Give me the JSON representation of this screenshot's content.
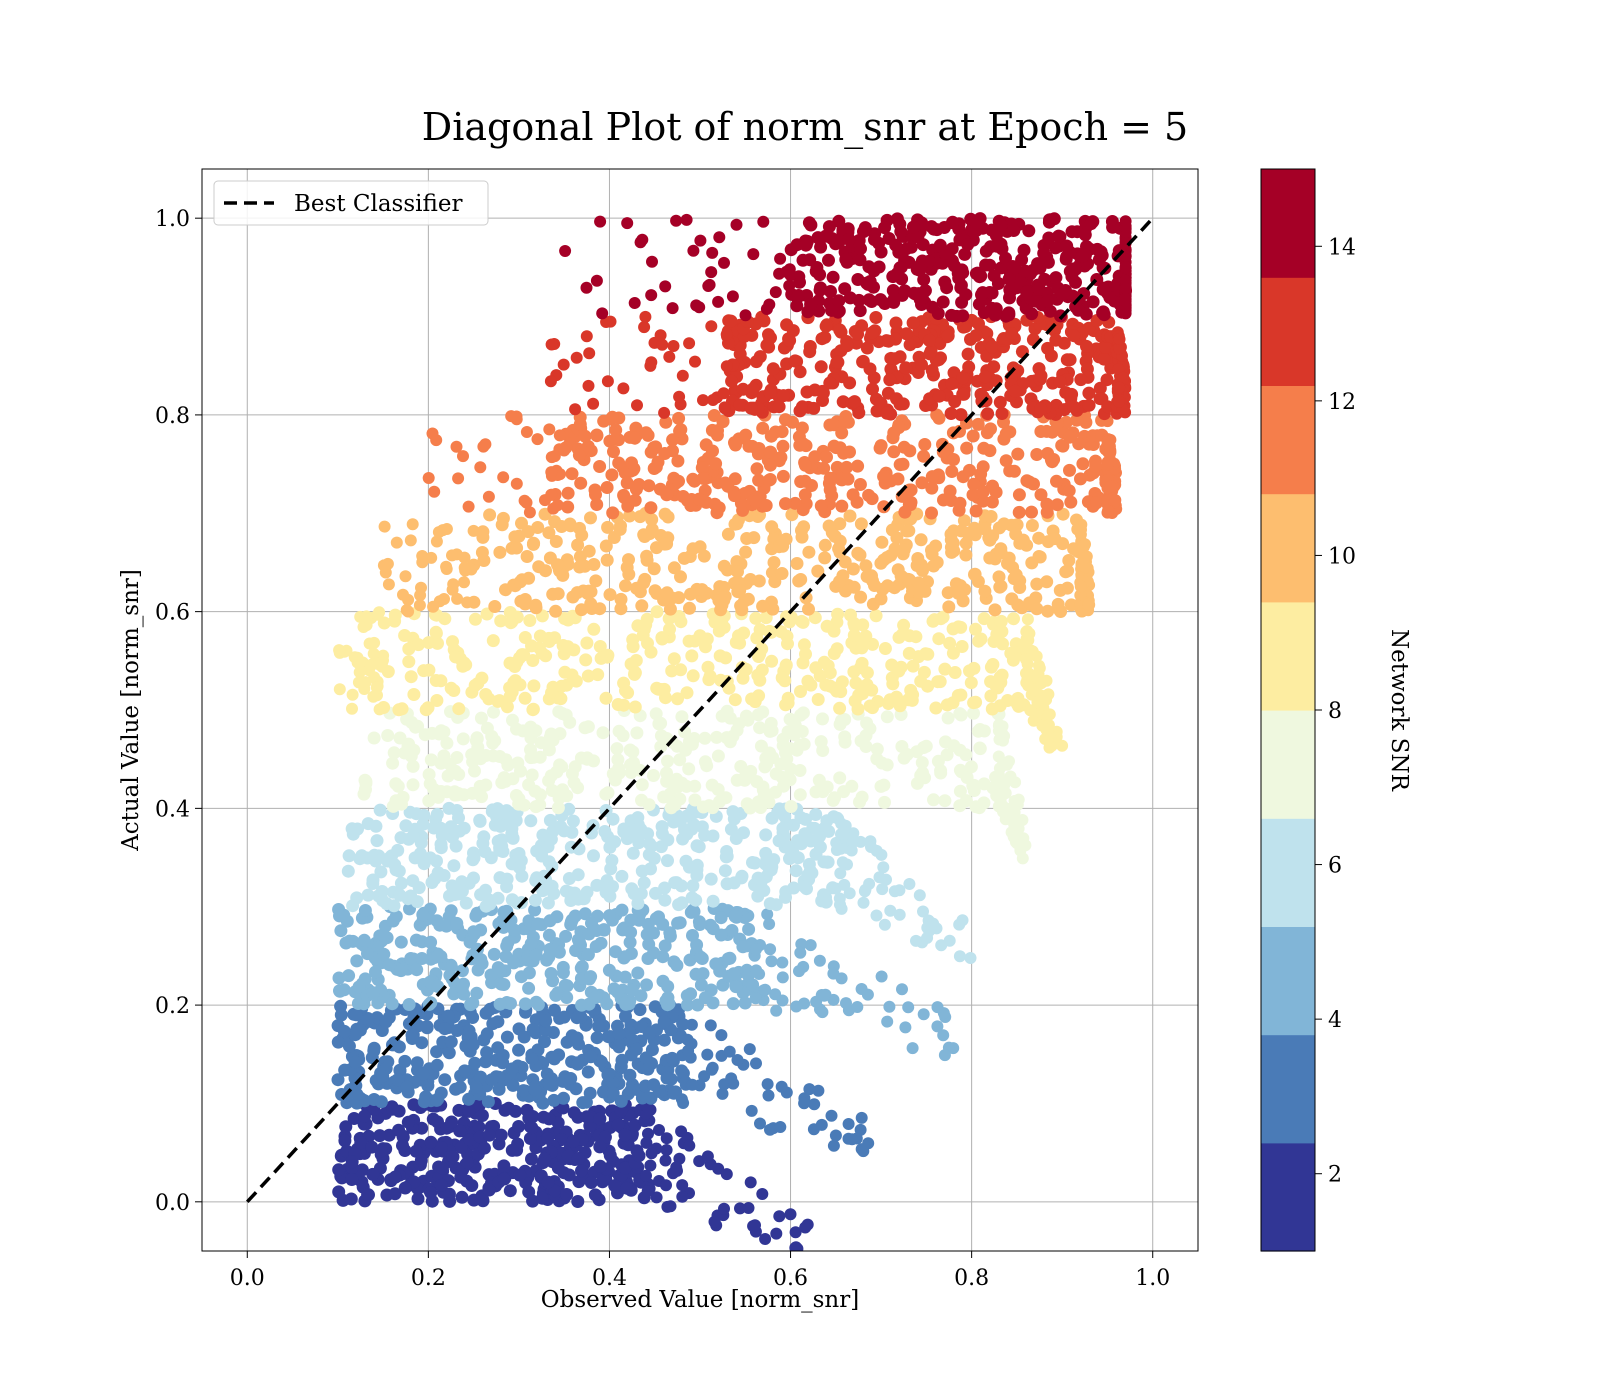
{
  "chart_data": {
    "type": "scatter",
    "title": "Diagonal Plot of norm_snr at Epoch = 5",
    "xlabel": "Observed Value [norm_snr]",
    "ylabel": "Actual Value [norm_snr]",
    "xlim": [
      -0.05,
      1.05
    ],
    "ylim": [
      -0.05,
      1.05
    ],
    "xticks": [
      "0.0",
      "0.2",
      "0.4",
      "0.6",
      "0.8",
      "1.0"
    ],
    "yticks": [
      "0.0",
      "0.2",
      "0.4",
      "0.6",
      "0.8",
      "1.0"
    ],
    "grid": true,
    "legend": {
      "position": "top-left",
      "entries": [
        "Best Classifier"
      ]
    },
    "reference_line": {
      "name": "Best Classifier",
      "style": "dashed",
      "color": "#000000",
      "x": [
        0.0,
        1.0
      ],
      "y": [
        0.0,
        1.0
      ]
    },
    "colorbar": {
      "label": "Network SNR",
      "range": [
        1,
        15
      ],
      "ticks": [
        "2",
        "4",
        "6",
        "8",
        "10",
        "12",
        "14"
      ],
      "colors": [
        "#313695",
        "#4a7bb7",
        "#81b5d7",
        "#bfe2ed",
        "#eff8df",
        "#fdeda1",
        "#fdbe6f",
        "#f57e4b",
        "#d93729",
        "#a50026"
      ]
    },
    "bands": [
      {
        "snr": 1.7,
        "color": "#313695",
        "y_range": [
          0.0,
          0.1
        ],
        "x_core": [
          0.1,
          0.44
        ],
        "x_tail": 0.62
      },
      {
        "snr": 3.1,
        "color": "#4a7bb7",
        "y_range": [
          0.1,
          0.2
        ],
        "x_core": [
          0.1,
          0.48
        ],
        "x_tail": 0.69
      },
      {
        "snr": 4.5,
        "color": "#81b5d7",
        "y_range": [
          0.2,
          0.3
        ],
        "x_core": [
          0.1,
          0.56
        ],
        "x_tail": 0.8
      },
      {
        "snr": 5.9,
        "color": "#bfe2ed",
        "y_range": [
          0.3,
          0.4
        ],
        "x_core": [
          0.11,
          0.65
        ],
        "x_tail": 0.8
      },
      {
        "snr": 7.3,
        "color": "#eff8df",
        "y_range": [
          0.4,
          0.5
        ],
        "x_core": [
          0.12,
          0.83
        ],
        "x_tail": 0.86
      },
      {
        "snr": 8.7,
        "color": "#fdeda1",
        "y_range": [
          0.5,
          0.6
        ],
        "x_core": [
          0.15,
          0.86
        ],
        "x_tail": 0.9
      },
      {
        "snr": 10.1,
        "color": "#fdbe6f",
        "y_range": [
          0.6,
          0.7
        ],
        "x_core": [
          0.25,
          0.92
        ],
        "x_tail": 0.93
      },
      {
        "snr": 11.5,
        "color": "#f57e4b",
        "y_range": [
          0.7,
          0.8
        ],
        "x_core": [
          0.35,
          0.95
        ],
        "x_tail": 0.96
      },
      {
        "snr": 12.9,
        "color": "#d93729",
        "y_range": [
          0.8,
          0.9
        ],
        "x_core": [
          0.53,
          0.96
        ],
        "x_tail": 0.97
      },
      {
        "snr": 14.3,
        "color": "#a50026",
        "y_range": [
          0.9,
          1.0
        ],
        "x_core": [
          0.6,
          0.97
        ],
        "x_tail": 0.97
      }
    ]
  }
}
